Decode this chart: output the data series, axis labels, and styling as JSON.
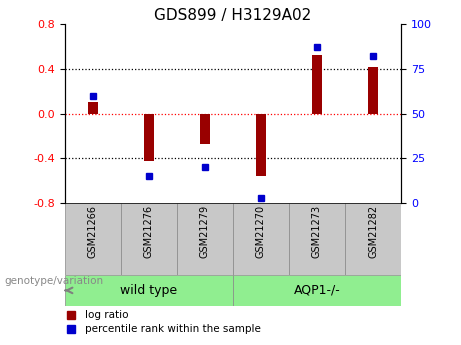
{
  "title": "GDS899 / H3129A02",
  "samples": [
    "GSM21266",
    "GSM21276",
    "GSM21279",
    "GSM21270",
    "GSM21273",
    "GSM21282"
  ],
  "log_ratio": [
    0.1,
    -0.42,
    -0.27,
    -0.56,
    0.52,
    0.42
  ],
  "percentile_rank": [
    60,
    15,
    20,
    3,
    87,
    82
  ],
  "bar_color": "#990000",
  "dot_color": "#0000cc",
  "ylim_left": [
    -0.8,
    0.8
  ],
  "ylim_right": [
    0,
    100
  ],
  "yticks_left": [
    -0.8,
    -0.4,
    0.0,
    0.4,
    0.8
  ],
  "yticks_right": [
    0,
    25,
    50,
    75,
    100
  ],
  "hlines_black": [
    -0.4,
    0.4
  ],
  "hline_red": 0.0,
  "groups": [
    {
      "label": "wild type",
      "indices": [
        0,
        1,
        2
      ],
      "color": "#90ee90"
    },
    {
      "label": "AQP1-/-",
      "indices": [
        3,
        4,
        5
      ],
      "color": "#90ee90"
    }
  ],
  "sample_box_color": "#c8c8c8",
  "legend_items": [
    {
      "label": "log ratio",
      "color": "#990000"
    },
    {
      "label": "percentile rank within the sample",
      "color": "#0000cc"
    }
  ],
  "genotype_label": "genotype/variation",
  "title_fontsize": 11,
  "tick_fontsize": 8,
  "bar_width": 0.18
}
